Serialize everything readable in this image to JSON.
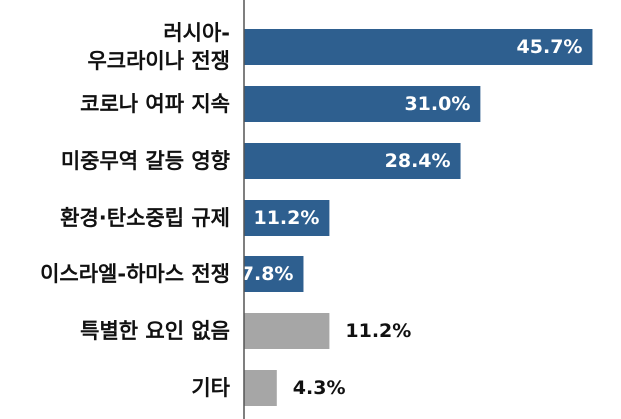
{
  "chart_data": {
    "type": "bar",
    "orientation": "horizontal",
    "categories": [
      [
        "러시아-",
        "우크라이나 전쟁"
      ],
      [
        "코로나 여파 지속"
      ],
      [
        "미중무역 갈등 영향"
      ],
      [
        "환경·탄소중립 규제"
      ],
      [
        "이스라엘-하마스 전쟁"
      ],
      [
        "특별한 요인 없음"
      ],
      [
        "기타"
      ]
    ],
    "values": [
      45.7,
      31.0,
      28.4,
      11.2,
      7.8,
      11.2,
      4.3
    ],
    "value_labels": [
      "45.7%",
      "31.0%",
      "28.4%",
      "11.2%",
      "7.8%",
      "11.2%",
      "4.3%"
    ],
    "bar_colors": [
      "#2e5f8f",
      "#2e5f8f",
      "#2e5f8f",
      "#2e5f8f",
      "#2e5f8f",
      "#a6a6a6",
      "#a6a6a6"
    ],
    "label_positions": [
      "inside",
      "inside",
      "inside",
      "inside",
      "inside",
      "outside",
      "outside"
    ],
    "label_colors": {
      "inside": "#ffffff",
      "outside": "#111111"
    },
    "xlim": [
      0,
      48
    ],
    "grid": false,
    "legend": "none"
  }
}
